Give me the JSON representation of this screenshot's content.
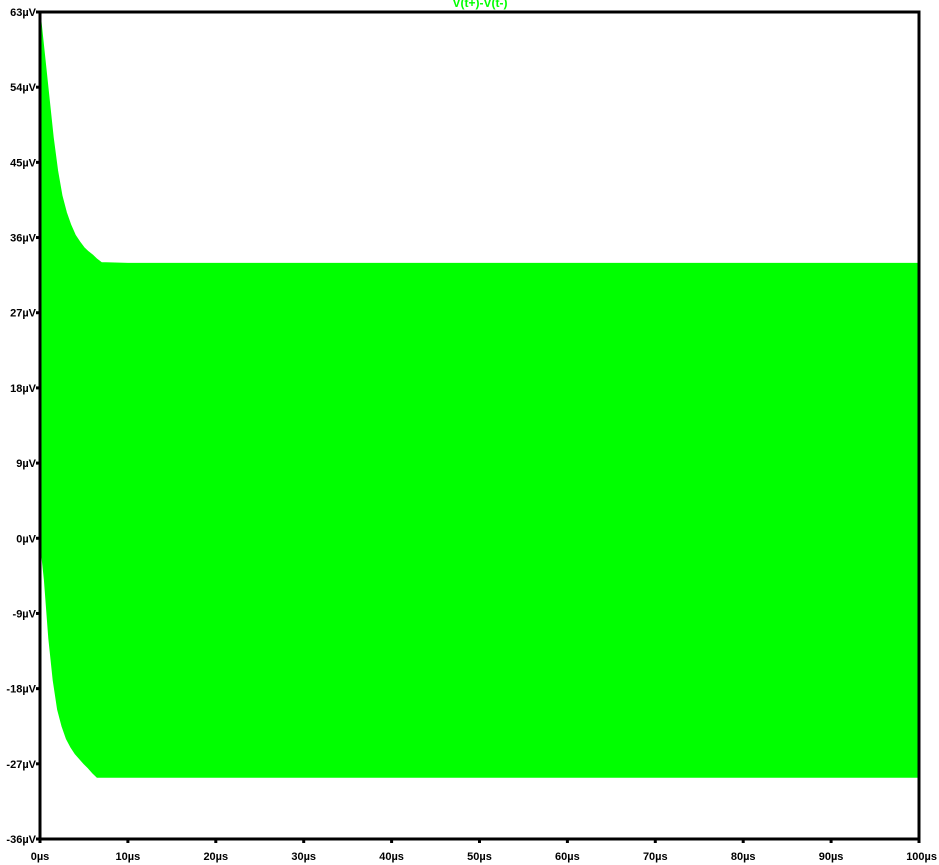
{
  "chart_data": {
    "type": "area",
    "title": "V(t+)-V(t-)",
    "trace_color": "#00ff00",
    "axis_color": "#000000",
    "background": "#ffffff",
    "grid": false,
    "x_unit": "µs",
    "y_unit": "µV",
    "xlim": [
      0,
      100
    ],
    "ylim": [
      -36,
      63
    ],
    "x_ticks": [
      0,
      10,
      20,
      30,
      40,
      50,
      60,
      70,
      80,
      90,
      100
    ],
    "x_tick_labels": [
      "0µs",
      "10µs",
      "20µs",
      "30µs",
      "40µs",
      "50µs",
      "60µs",
      "70µs",
      "80µs",
      "90µs",
      "100µs"
    ],
    "y_ticks": [
      63,
      54,
      45,
      36,
      27,
      18,
      9,
      0,
      -9,
      -18,
      -27,
      -36
    ],
    "y_tick_labels": [
      "63µV",
      "54µV",
      "45µV",
      "36µV",
      "27µV",
      "18µV",
      "9µV",
      "0µV",
      "-9µV",
      "-18µV",
      "-27µV",
      "-36µV"
    ],
    "series": [
      {
        "x": [
          0,
          0.5,
          1,
          1.5,
          2,
          2.5,
          3,
          3.5,
          4,
          4.5,
          5,
          5.5,
          6,
          6.5,
          7,
          10,
          20,
          30,
          40,
          50,
          60,
          70,
          80,
          90,
          99.9,
          100
        ],
        "y_max": [
          63,
          58,
          53,
          48,
          44,
          41,
          39,
          37.5,
          36.3,
          35.5,
          34.8,
          34.3,
          33.9,
          33.4,
          33.0,
          32.9,
          32.9,
          32.9,
          32.9,
          32.9,
          32.9,
          32.9,
          32.9,
          32.9,
          32.9,
          32.9
        ],
        "y_min": [
          0,
          -5,
          -12,
          -17,
          -20.5,
          -22.5,
          -24,
          -25,
          -25.8,
          -26.4,
          -27,
          -27.5,
          -28.1,
          -28.6,
          -28.6,
          -28.6,
          -28.6,
          -28.6,
          -28.6,
          -28.6,
          -28.6,
          -28.6,
          -28.6,
          -28.6,
          -28.6,
          -30.4
        ]
      }
    ]
  }
}
